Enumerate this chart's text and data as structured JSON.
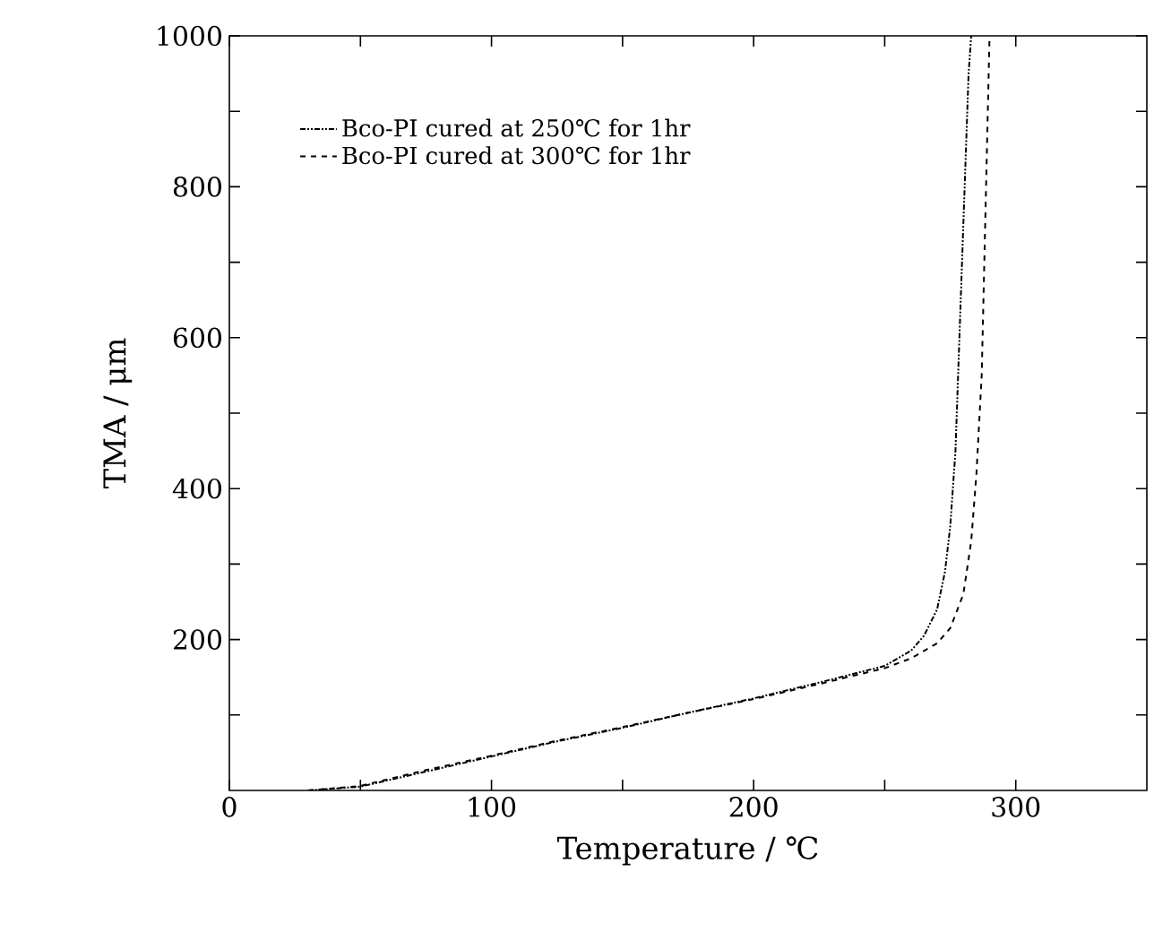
{
  "chart_data": {
    "type": "line",
    "xlabel": "Temperature / ℃",
    "ylabel": "TMA / μm",
    "xlim": [
      0,
      350
    ],
    "ylim": [
      0,
      1000
    ],
    "xticks": [
      0,
      {
        "value": 50,
        "label": null
      },
      100,
      {
        "value": 150,
        "label": null
      },
      200,
      {
        "value": 250,
        "label": null
      },
      300
    ],
    "yticks": [
      {
        "value": 100,
        "label": null
      },
      200,
      {
        "value": 300,
        "label": null
      },
      400,
      {
        "value": 500,
        "label": null
      },
      600,
      {
        "value": 700,
        "label": null
      },
      800,
      {
        "value": 900,
        "label": null
      },
      1000
    ],
    "legend": "top left",
    "marker": "none",
    "grid": false,
    "series": [
      {
        "name": "Bco-PI cured at 250℃ for 1hr",
        "color": "#000000",
        "line_style": "dotted",
        "x": [
          30,
          50,
          75,
          100,
          125,
          150,
          175,
          200,
          225,
          250,
          260,
          265,
          270,
          273,
          275,
          277,
          278,
          279,
          280,
          281,
          282,
          283
        ],
        "values": [
          0,
          5,
          25,
          45,
          65,
          83,
          103,
          122,
          143,
          165,
          185,
          205,
          240,
          290,
          350,
          450,
          550,
          650,
          750,
          850,
          950,
          1000
        ]
      },
      {
        "name": "Bco-PI cured at 300℃ for 1hr",
        "color": "#000000",
        "line_style": "dashed",
        "x": [
          30,
          50,
          75,
          100,
          125,
          150,
          175,
          200,
          225,
          250,
          260,
          270,
          275,
          280,
          283,
          285,
          287,
          288,
          289,
          290
        ],
        "values": [
          0,
          6,
          27,
          46,
          66,
          84,
          103,
          121,
          141,
          162,
          175,
          195,
          215,
          260,
          330,
          420,
          550,
          700,
          850,
          1000
        ]
      }
    ]
  }
}
